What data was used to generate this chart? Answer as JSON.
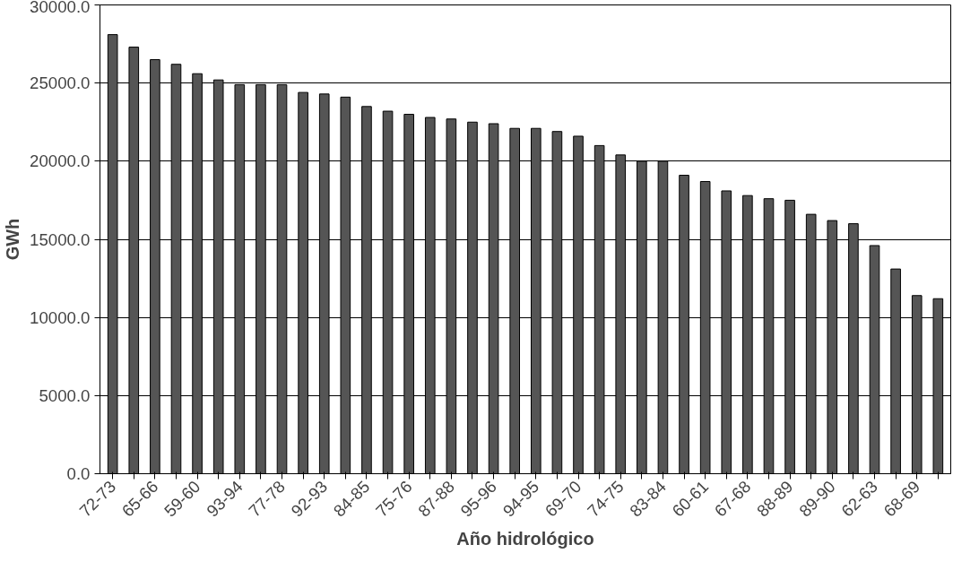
{
  "chart_data": {
    "type": "bar",
    "xlabel": "Año hidrológico",
    "ylabel": "GWh",
    "categories": [
      "72-73",
      null,
      "65-66",
      null,
      "59-60",
      null,
      "93-94",
      null,
      "77-78",
      null,
      "92-93",
      null,
      "84-85",
      null,
      "75-76",
      null,
      "87-88",
      null,
      "95-96",
      null,
      "94-95",
      null,
      "69-70",
      null,
      "74-75",
      null,
      "83-84",
      null,
      "60-61",
      null,
      "67-68",
      null,
      "88-89",
      null,
      "89-90",
      null,
      "62-63",
      null,
      "68-69",
      null
    ],
    "values": [
      28100,
      27300,
      26500,
      26200,
      25600,
      25200,
      24900,
      24900,
      24900,
      24400,
      24300,
      24100,
      23500,
      23200,
      23000,
      22800,
      22700,
      22500,
      22400,
      22100,
      22100,
      21900,
      21600,
      21000,
      20400,
      20000,
      20000,
      19100,
      18700,
      18100,
      17800,
      17600,
      17500,
      16600,
      16200,
      16000,
      14600,
      13100,
      11400,
      11200
    ],
    "color": "#555555",
    "ylim": [
      0,
      30000
    ],
    "yticks": [
      {
        "value": 0,
        "label": "0.0"
      },
      {
        "value": 5000,
        "label": "5000.0"
      },
      {
        "value": 10000,
        "label": "10000.0"
      },
      {
        "value": 15000,
        "label": "15000.0"
      },
      {
        "value": 20000,
        "label": "20000.0"
      },
      {
        "value": 25000,
        "label": "25000.0"
      },
      {
        "value": 30000,
        "label": "30000.0"
      }
    ],
    "grid": "y"
  }
}
